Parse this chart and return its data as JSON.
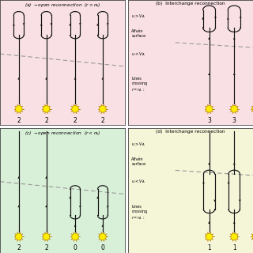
{
  "panel_bg": [
    "#f9e0e4",
    "#f9e0e4",
    "#d8f0d8",
    "#f5f5d8"
  ],
  "alfven_color": "#999999",
  "line_color": "#111111",
  "star_fc": "#ffee00",
  "star_ec": "#bb8800",
  "numbers_a": [
    "2",
    "2",
    "2",
    "2"
  ],
  "numbers_b": [
    "3",
    "3"
  ],
  "numbers_c": [
    "2",
    "2",
    "0",
    "0"
  ],
  "numbers_d": [
    "1",
    "1"
  ],
  "title_a": "open reconnection  ($r > r_\\mathrm{A}$)",
  "title_b": "(b)  Interchange reconnection",
  "title_c": "open reconnection  ($r < r_\\mathrm{A}$)",
  "title_d": "(d)  Interchange reconnection",
  "label_u_above": "$u > V_\\mathrm{A}$",
  "label_alfven": "Alfvén\nsurface",
  "label_u_below": "$u < V_\\mathrm{A}$",
  "label_lines": "Lines\ncrossing\n$r = r_\\mathrm{A}$ :"
}
